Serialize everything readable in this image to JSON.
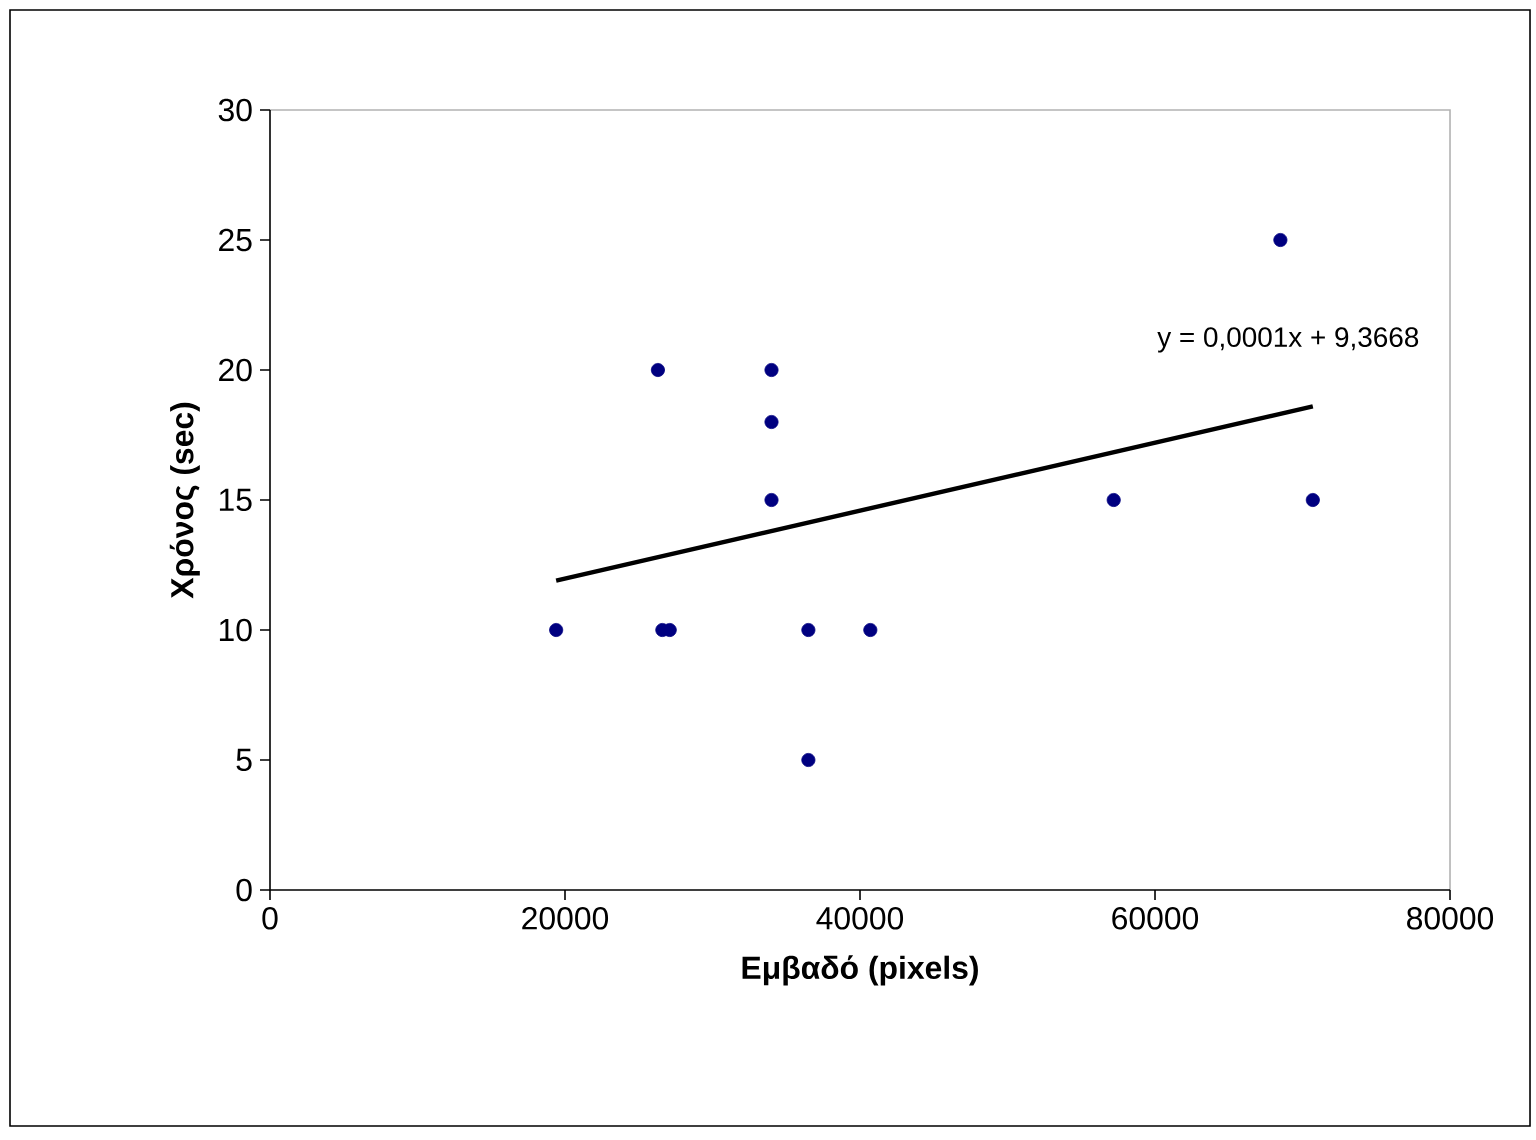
{
  "chart_data": {
    "type": "scatter",
    "xlabel": "Εμβαδό (pixels)",
    "ylabel": "Χρόνος (sec)",
    "annotations": [
      "y = 0,0001x + 9,3668"
    ],
    "xlim": [
      0,
      80000
    ],
    "ylim": [
      0,
      30
    ],
    "xticks": [
      0,
      20000,
      40000,
      60000,
      80000
    ],
    "yticks": [
      0,
      5,
      10,
      15,
      20,
      25,
      30
    ],
    "grid": false,
    "series": [
      {
        "marker": "circle",
        "color": "#000080",
        "x": [
          19400,
          26300,
          26600,
          27100,
          34000,
          34000,
          34000,
          36500,
          36500,
          40700,
          57200,
          68500,
          70700
        ],
        "values": [
          10,
          20,
          10,
          10,
          20,
          18,
          15,
          10,
          5,
          10,
          15,
          25,
          15
        ]
      },
      {
        "type": "line",
        "marker": "none",
        "color": "#000000",
        "x": [
          19400,
          70700
        ],
        "values": [
          11.9,
          18.6
        ]
      }
    ]
  }
}
